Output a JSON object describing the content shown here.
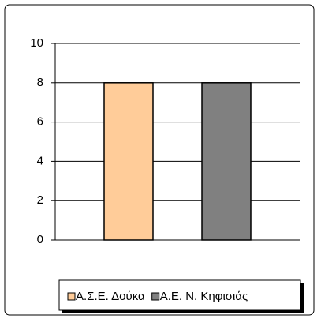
{
  "chart_data": {
    "type": "bar",
    "categories": [
      null
    ],
    "series": [
      {
        "name": "Α.Σ.Ε. Δούκα",
        "color": "#ffcc99",
        "values": [
          8
        ]
      },
      {
        "name": "Α.Ε. Ν. Κηφισιάς",
        "color": "#808080",
        "values": [
          8
        ]
      }
    ],
    "ylim": [
      0,
      10
    ],
    "yticks": [
      0,
      2,
      4,
      6,
      8,
      10
    ],
    "grid": true,
    "legend": "bottom"
  }
}
